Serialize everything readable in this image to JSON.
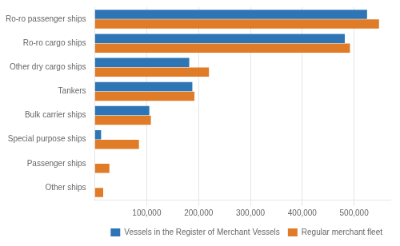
{
  "chart_data": {
    "type": "bar",
    "orientation": "horizontal",
    "categories": [
      "Other ships",
      "Passenger ships",
      "Special purpose ships",
      "Bulk carrier ships",
      "Tankers",
      "Other dry cargo ships",
      "Ro-ro cargo ships",
      "Ro-ro passenger ships"
    ],
    "series": [
      {
        "name": "Vessels in the Register of Merchant Vessels",
        "color": "#2E75B6",
        "values": [
          0,
          0,
          12000,
          105000,
          188000,
          182000,
          482000,
          525000
        ]
      },
      {
        "name": "Regular merchant fleet",
        "color": "#E07B28",
        "values": [
          16000,
          28000,
          85000,
          108000,
          192000,
          220000,
          492000,
          548000
        ]
      }
    ],
    "xlim": [
      0,
      570000
    ],
    "xticks": [
      {
        "value": 100000,
        "label": "100,000"
      },
      {
        "value": 200000,
        "label": "200,000"
      },
      {
        "value": 300000,
        "label": "300,000"
      },
      {
        "value": 400000,
        "label": "400,000"
      },
      {
        "value": 500000,
        "label": "500,000"
      }
    ],
    "grid": "x",
    "legend": "lower right"
  }
}
